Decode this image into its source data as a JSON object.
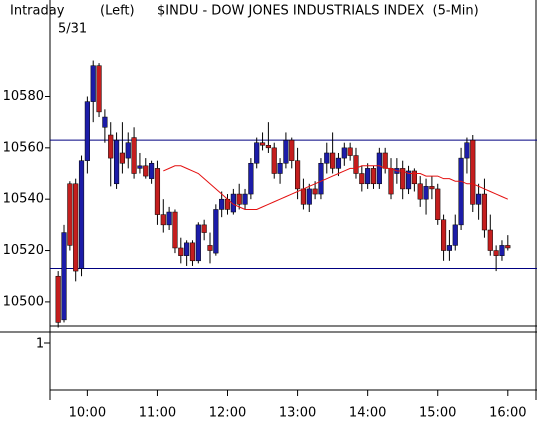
{
  "chart_data": {
    "type": "candlestick",
    "title": "$INDU - DOW JONES INDUSTRIALS INDEX  (5-Min)",
    "period": "Intraday",
    "axis_side": "(Left)",
    "date": "5/31",
    "lower_panel_label": "1",
    "x": [
      575,
      580,
      585,
      590,
      595,
      600,
      605,
      610,
      615,
      620,
      625,
      630,
      635,
      640,
      645,
      650,
      655,
      660,
      665,
      670,
      675,
      680,
      685,
      690,
      695,
      700,
      705,
      710,
      715,
      720,
      725,
      730,
      735,
      740,
      745,
      750,
      755,
      760,
      765,
      770,
      775,
      780,
      785,
      790,
      795,
      800,
      805,
      810,
      815,
      820,
      825,
      830,
      835,
      840,
      845,
      850,
      855,
      860,
      865,
      870,
      875,
      880,
      885,
      890,
      895,
      900,
      905,
      910,
      915,
      920,
      925,
      930,
      935,
      940,
      945,
      950,
      955,
      960
    ],
    "open": [
      10510,
      10493,
      10546,
      10546,
      10513,
      10555,
      10578,
      10592,
      10568,
      10565,
      10546,
      10558,
      10556,
      10564,
      10552,
      10553,
      10548,
      10552,
      10534,
      10530,
      10535,
      10521,
      10518,
      10523,
      10516,
      10530,
      10522,
      10519,
      10536,
      10540,
      10535,
      10542,
      10538,
      10542,
      10554,
      10562,
      10561,
      10560,
      10550,
      10554,
      10563,
      10555,
      10544,
      10538,
      10544,
      10542,
      10554,
      10558,
      10552,
      10556,
      10560,
      10557,
      10550,
      10546,
      10552,
      10546,
      10558,
      10552,
      10550,
      10552,
      10544,
      10551,
      10546,
      10540,
      10545,
      10544,
      10532,
      10520,
      10522,
      10530,
      10556,
      10563,
      10538,
      10542,
      10528,
      10520,
      10518,
      10522
    ],
    "high": [
      10512,
      10530,
      10547,
      10548,
      10557,
      10580,
      10594,
      10593,
      10575,
      10570,
      10566,
      10570,
      10566,
      10568,
      10558,
      10556,
      10555,
      10555,
      10540,
      10537,
      10536,
      10525,
      10524,
      10524,
      10531,
      10532,
      10527,
      10538,
      10543,
      10542,
      10544,
      10546,
      10544,
      10556,
      10564,
      10566,
      10570,
      10562,
      10556,
      10566,
      10564,
      10560,
      10548,
      10546,
      10547,
      10556,
      10562,
      10566,
      10558,
      10562,
      10562,
      10560,
      10553,
      10554,
      10553,
      10560,
      10560,
      10556,
      10556,
      10555,
      10553,
      10552,
      10549,
      10548,
      10549,
      10546,
      10534,
      10528,
      10534,
      10560,
      10564,
      10565,
      10546,
      10548,
      10534,
      10522,
      10524,
      10526
    ],
    "low": [
      10490,
      10492,
      10520,
      10508,
      10510,
      10550,
      10570,
      10572,
      10562,
      10545,
      10544,
      10550,
      10552,
      10548,
      10550,
      10548,
      10546,
      10530,
      10527,
      10528,
      10519,
      10515,
      10514,
      10514,
      10515,
      10524,
      10515,
      10518,
      10533,
      10534,
      10534,
      10536,
      10536,
      10540,
      10552,
      10559,
      10558,
      10548,
      10546,
      10552,
      10552,
      10540,
      10536,
      10535,
      10540,
      10540,
      10550,
      10550,
      10549,
      10553,
      10555,
      10548,
      10543,
      10544,
      10544,
      10544,
      10550,
      10540,
      10546,
      10540,
      10542,
      10543,
      10537,
      10534,
      10540,
      10530,
      10516,
      10516,
      10520,
      10528,
      10550,
      10535,
      10532,
      10525,
      10518,
      10512,
      10516,
      10520
    ],
    "close": [
      10492,
      10527,
      10522,
      10512,
      10555,
      10578,
      10592,
      10574,
      10572,
      10556,
      10563,
      10554,
      10562,
      10550,
      10553,
      10549,
      10554,
      10534,
      10530,
      10535,
      10521,
      10518,
      10523,
      10516,
      10530,
      10527,
      10520,
      10536,
      10540,
      10536,
      10542,
      10538,
      10542,
      10554,
      10562,
      10561,
      10560,
      10550,
      10554,
      10563,
      10555,
      10544,
      10538,
      10544,
      10542,
      10554,
      10558,
      10552,
      10556,
      10560,
      10557,
      10550,
      10546,
      10552,
      10546,
      10558,
      10552,
      10542,
      10552,
      10544,
      10551,
      10546,
      10540,
      10545,
      10544,
      10532,
      10520,
      10522,
      10530,
      10556,
      10562,
      10538,
      10542,
      10528,
      10520,
      10518,
      10522,
      10521
    ],
    "up_color": "#1c1ca8",
    "down_color": "#c41e1e",
    "moving_average": {
      "color": "#e41010",
      "values": [
        null,
        null,
        null,
        null,
        null,
        null,
        null,
        null,
        null,
        null,
        null,
        null,
        null,
        null,
        null,
        null,
        null,
        null,
        10551,
        10552,
        10553,
        10553,
        10552,
        10551,
        10550,
        10548,
        10546,
        10544,
        10542,
        10540,
        10538,
        10537,
        10536,
        10536,
        10536,
        10537,
        10538,
        10539,
        10540,
        10541,
        10542,
        10543,
        10544,
        10545,
        10546,
        10547,
        10548,
        10549,
        10550,
        10551,
        10552,
        10552,
        10553,
        10553,
        10553,
        10553,
        10552,
        10552,
        10551,
        10551,
        10550,
        10550,
        10550,
        10549,
        10549,
        10549,
        10548,
        10548,
        10547,
        10547,
        10546,
        10546,
        10545,
        10544,
        10543,
        10542,
        10541,
        10540
      ]
    },
    "hlines": {
      "color": "#000080",
      "values": [
        10563,
        10513
      ]
    },
    "xlim": [
      568,
      985
    ],
    "xticks": [
      {
        "value": 600,
        "label": "10:00"
      },
      {
        "value": 660,
        "label": "11:00"
      },
      {
        "value": 720,
        "label": "12:00"
      },
      {
        "value": 780,
        "label": "13:00"
      },
      {
        "value": 840,
        "label": "14:00"
      },
      {
        "value": 900,
        "label": "15:00"
      },
      {
        "value": 960,
        "label": "16:00"
      }
    ],
    "ylim": [
      10491,
      10602
    ],
    "yticks": [
      10500,
      10520,
      10540,
      10560,
      10580
    ]
  }
}
